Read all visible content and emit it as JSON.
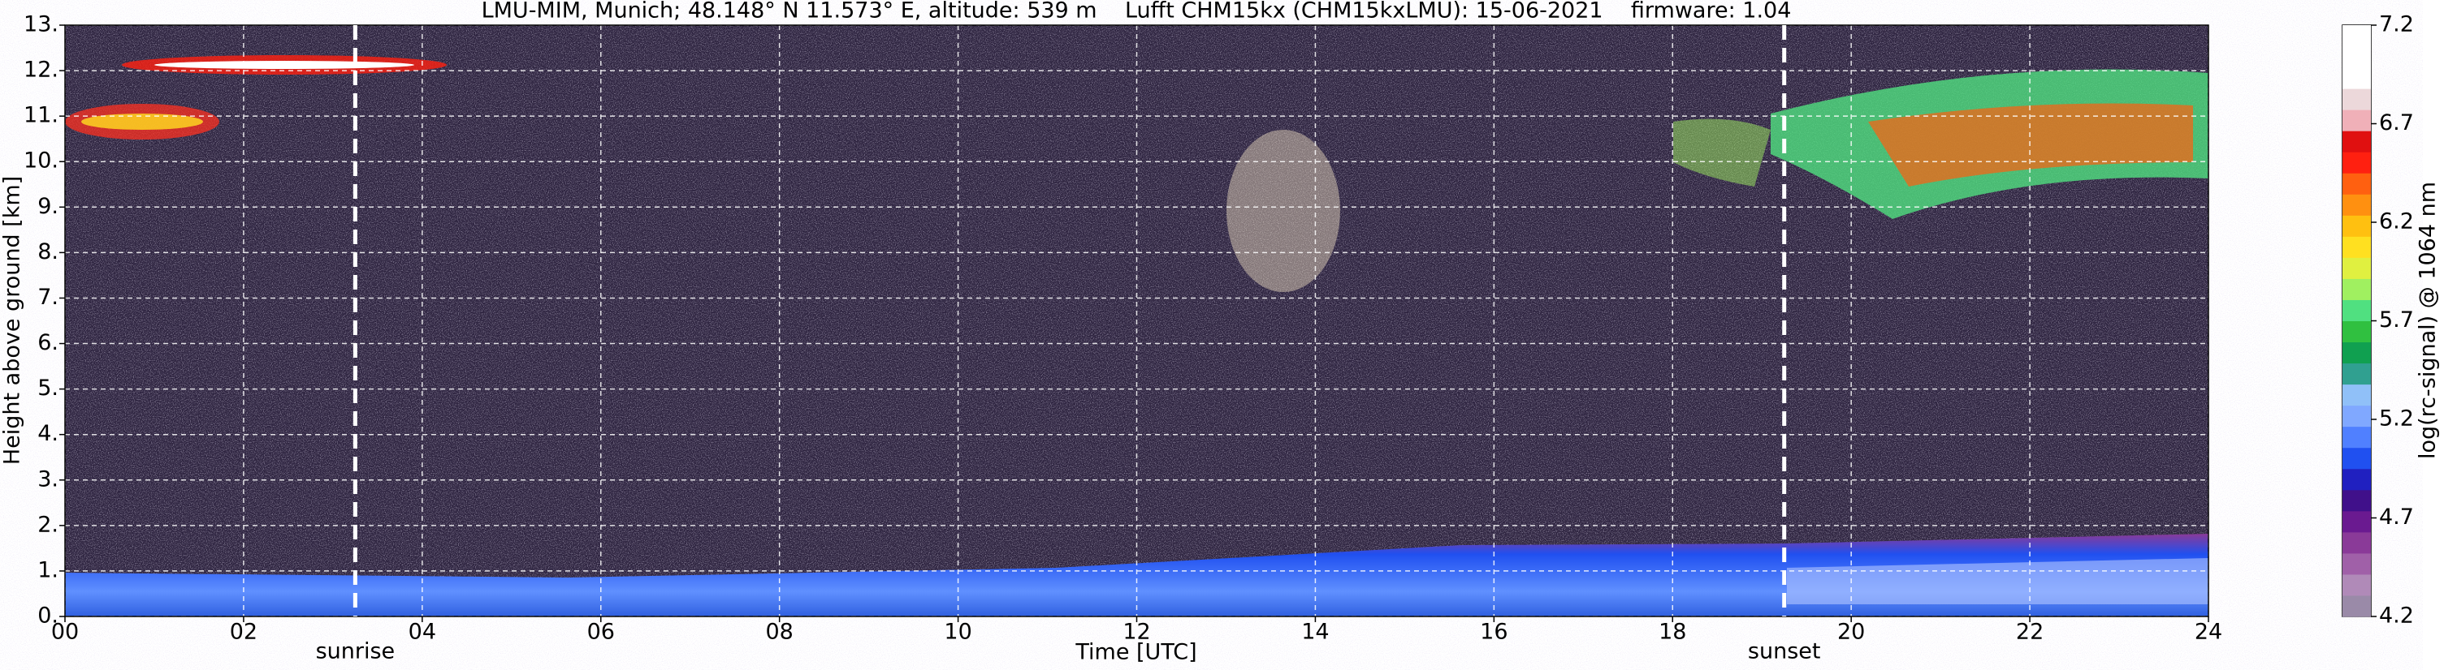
{
  "chart_data": {
    "type": "heatmap",
    "title": "LMU-MIM, Munich; 48.148° N 11.573° E, altitude: 539 m    Lufft CHM15kx (CHM15kxLMU): 15-06-2021    firmware: 1.04",
    "xlabel": "Time [UTC]",
    "ylabel": "Height above ground [km]",
    "xlim": [
      0,
      24
    ],
    "xticks": [
      {
        "value": 0,
        "label": "00"
      },
      {
        "value": 2,
        "label": "02"
      },
      {
        "value": 4,
        "label": "04"
      },
      {
        "value": 6,
        "label": "06"
      },
      {
        "value": 8,
        "label": "08"
      },
      {
        "value": 10,
        "label": "10"
      },
      {
        "value": 12,
        "label": "12"
      },
      {
        "value": 14,
        "label": "14"
      },
      {
        "value": 16,
        "label": "16"
      },
      {
        "value": 18,
        "label": "18"
      },
      {
        "value": 20,
        "label": "20"
      },
      {
        "value": 22,
        "label": "22"
      },
      {
        "value": 24,
        "label": "24"
      }
    ],
    "ylim": [
      0,
      13
    ],
    "yticks": [
      {
        "value": 0,
        "label": "0."
      },
      {
        "value": 1,
        "label": "1."
      },
      {
        "value": 2,
        "label": "2."
      },
      {
        "value": 3,
        "label": "3."
      },
      {
        "value": 4,
        "label": "4."
      },
      {
        "value": 5,
        "label": "5."
      },
      {
        "value": 6,
        "label": "6."
      },
      {
        "value": 7,
        "label": "7."
      },
      {
        "value": 8,
        "label": "8."
      },
      {
        "value": 9,
        "label": "9."
      },
      {
        "value": 10,
        "label": "10."
      },
      {
        "value": 11,
        "label": "11."
      },
      {
        "value": 12,
        "label": "12."
      },
      {
        "value": 13,
        "label": "13."
      }
    ],
    "grid": true,
    "vlines": [
      {
        "x": 3.25,
        "label": "sunrise"
      },
      {
        "x": 19.25,
        "label": "sunset"
      }
    ],
    "colorbar": {
      "label": "log(rc-signal) @ 1064 nm",
      "clim": [
        4.2,
        7.2
      ],
      "ticks": [
        4.2,
        4.7,
        5.2,
        5.7,
        6.2,
        6.7,
        7.2
      ],
      "colors": [
        "#9a8aa8",
        "#b08ab8",
        "#a060a8",
        "#8a3a98",
        "#6a1a90",
        "#40108a",
        "#2020c0",
        "#2050f0",
        "#5080ff",
        "#80a8ff",
        "#90c0f8",
        "#30a090",
        "#10a050",
        "#30c040",
        "#50e080",
        "#a0f060",
        "#e0f040",
        "#ffe020",
        "#ffc010",
        "#ff9010",
        "#ff6010",
        "#ff2010",
        "#e01010",
        "#f0b0b8",
        "#ecd8da",
        "#ffffff",
        "#ffffff",
        "#ffffff"
      ]
    }
  }
}
